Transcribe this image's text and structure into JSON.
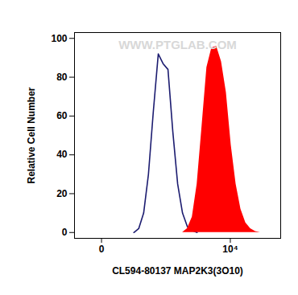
{
  "chart_data": {
    "type": "area",
    "annotations": [
      "WWW.PTGLAB.COM"
    ],
    "x_label": "CL594-80137 MAP2K3(3O10)",
    "y_label": "Relative Cell Number",
    "log": "x",
    "grid": false,
    "xlim": [
      -800,
      24000
    ],
    "xticks": [
      0,
      {
        "value": 10000,
        "label": "10⁴"
      }
    ],
    "ylim": [
      -3,
      103
    ],
    "yticks": [
      0,
      20,
      40,
      60,
      80,
      100
    ],
    "x": [
      820,
      1000,
      1200,
      1420,
      1650,
      1900,
      2180,
      2470,
      2790,
      3130,
      3500,
      3900,
      4330,
      4800,
      5300,
      5850,
      6430,
      7070,
      7750,
      8490,
      9290,
      10150,
      11080,
      12080,
      13170,
      14340,
      15610,
      16970
    ],
    "series": [
      {
        "type": "line",
        "color": "#1c1c70",
        "values": [
          null,
          0,
          2,
          10,
          30,
          62,
          92,
          87,
          84,
          52,
          25,
          10,
          3,
          1,
          0,
          null,
          null,
          null,
          null,
          null,
          null,
          null,
          null,
          null,
          null,
          null,
          null,
          null
        ]
      },
      {
        "type": "area",
        "color": "#ff0000",
        "values": [
          null,
          null,
          null,
          null,
          null,
          null,
          null,
          null,
          null,
          null,
          null,
          0,
          2,
          8,
          25,
          55,
          85,
          95,
          96,
          88,
          72,
          45,
          25,
          12,
          5,
          2,
          0.5,
          0
        ]
      }
    ]
  }
}
